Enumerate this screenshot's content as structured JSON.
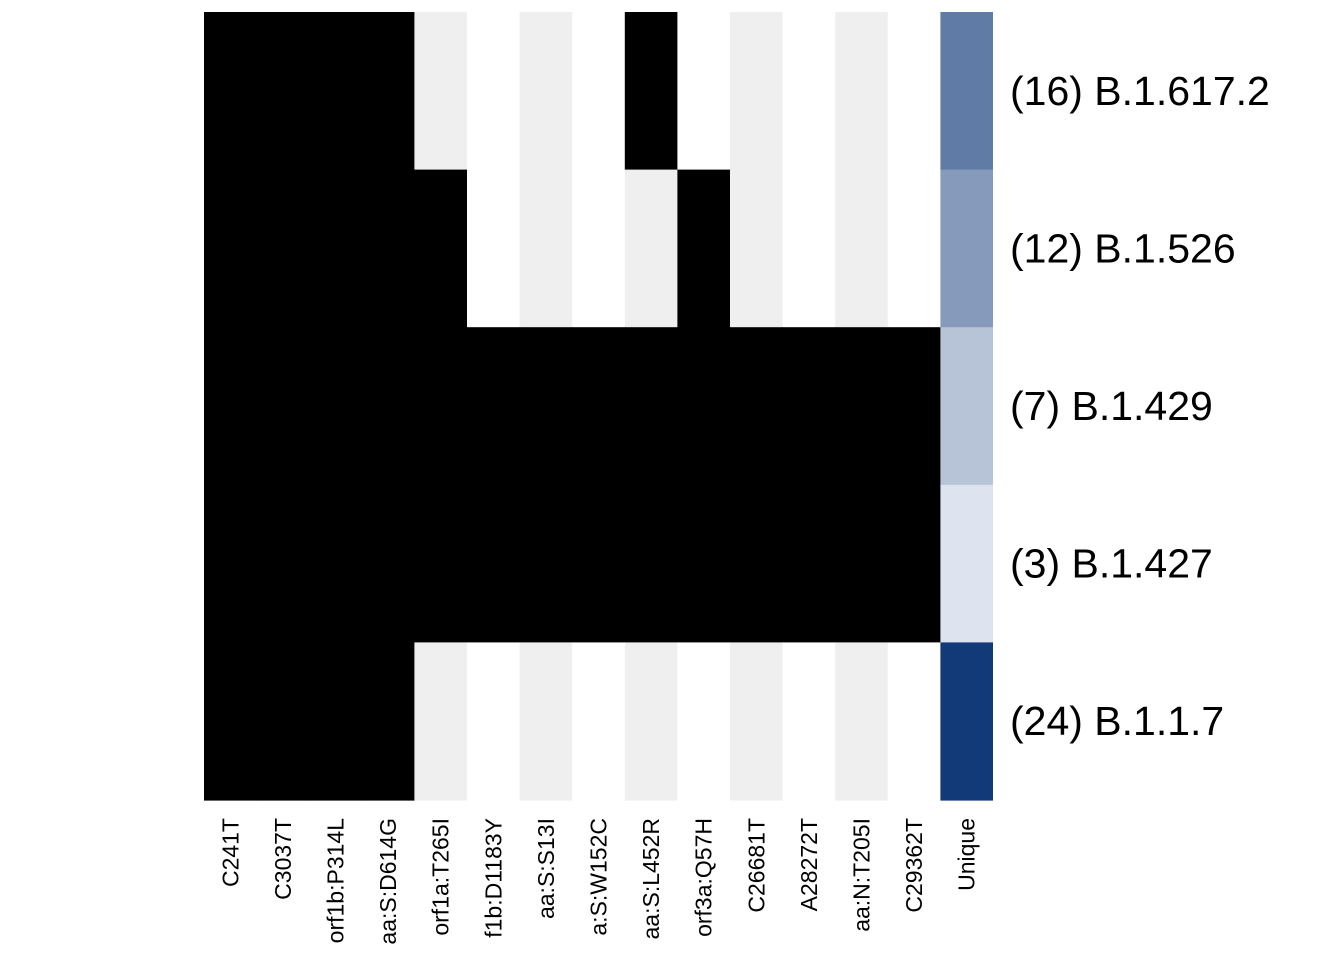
{
  "chart_data": {
    "type": "heatmap",
    "columns": [
      "C241T",
      "C3037T",
      "orf1b:P314L",
      "aa:S:D614G",
      "orf1a:T265I",
      "orf1b:D1183Y",
      "aa:S:S13I",
      "aa:S:W152C",
      "aa:S:L452R",
      "orf3a:Q57H",
      "C26681T",
      "A28272T",
      "aa:N:T205I",
      "C29362T"
    ],
    "column_tick_labels_visible": [
      "C241T",
      "C3037T",
      "orf1b:P314L",
      "aa:S:D614G",
      "orf1a:T265I",
      "f1b:D1183Y",
      "aa:S:S13I",
      "a:S:W152C",
      "aa:S:L452R",
      "orf3a:Q57H",
      "C26681T",
      "A28272T",
      "aa:N:T205I",
      "C29362T"
    ],
    "rows": [
      "(16) B.1.617.2",
      "(12) B.1.526",
      "(7) B.1.429",
      "(3) B.1.427",
      "(24) B.1.1.7"
    ],
    "matrix": [
      [
        1,
        1,
        1,
        1,
        0,
        0,
        0,
        0,
        1,
        0,
        0,
        0,
        0,
        0
      ],
      [
        1,
        1,
        1,
        1,
        1,
        0,
        0,
        0,
        0,
        1,
        0,
        0,
        0,
        0
      ],
      [
        1,
        1,
        1,
        1,
        1,
        1,
        1,
        1,
        1,
        1,
        1,
        1,
        1,
        1
      ],
      [
        1,
        1,
        1,
        1,
        1,
        1,
        1,
        1,
        1,
        1,
        1,
        1,
        1,
        1
      ],
      [
        1,
        1,
        1,
        1,
        0,
        0,
        0,
        0,
        0,
        0,
        0,
        0,
        0,
        0
      ]
    ],
    "unique_column": {
      "label": "Unique",
      "values": [
        16,
        12,
        7,
        3,
        24
      ]
    },
    "colors": {
      "present": "#000000",
      "absent_a": "#efefef",
      "absent_b": "#ffffff",
      "unique_scale": [
        "#dde4ef",
        "#133a78"
      ]
    }
  }
}
